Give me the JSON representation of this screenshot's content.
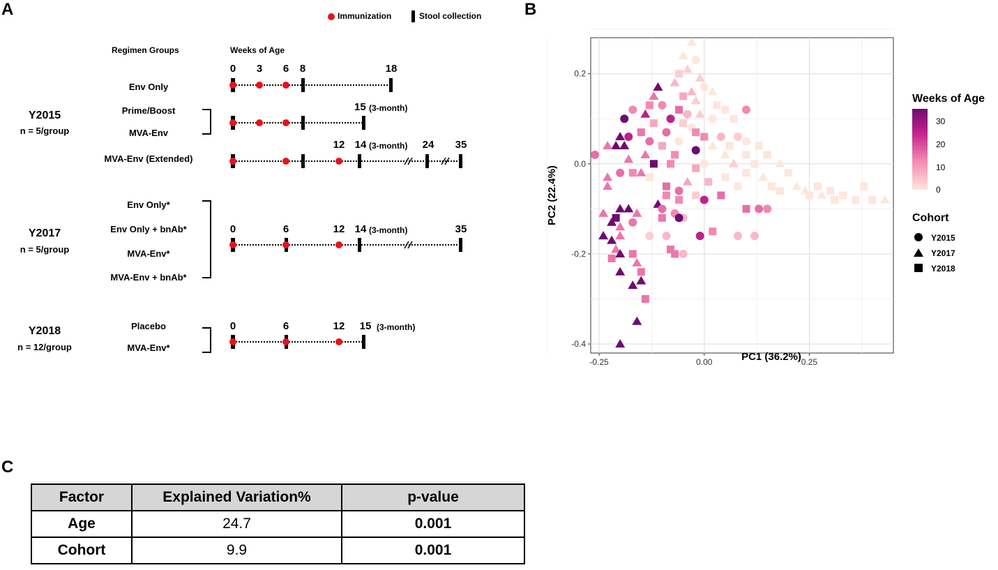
{
  "panel_a": {
    "letter": "A",
    "legend": {
      "immunization": "Immunization",
      "stool": "Stool collection"
    },
    "header_groups": "Regimen Groups",
    "header_weeks": "Weeks of Age",
    "cohorts": [
      {
        "name": "Y2015",
        "n": "n = 5/group"
      },
      {
        "name": "Y2017",
        "n": "n = 5/group"
      },
      {
        "name": "Y2018",
        "n": "n = 12/group"
      }
    ],
    "groups": {
      "env_only": "Env Only",
      "prime_boost": "Prime/Boost",
      "mva_env": "MVA-Env",
      "mva_env_ext": "MVA-Env (Extended)",
      "env_only_star": "Env Only*",
      "env_only_bnab": "Env Only + bnAb*",
      "mva_env_star": "MVA-Env*",
      "mva_env_bnab": "MVA-Env + bnAb*",
      "placebo": "Placebo",
      "mva_env_star2": "MVA-Env*"
    },
    "weeks": {
      "r1": [
        "0",
        "3",
        "6",
        "8",
        "18"
      ],
      "r2": [
        "15"
      ],
      "r3": [
        "12",
        "14",
        "24",
        "35"
      ],
      "r4": [
        "0",
        "6",
        "12",
        "14",
        "35"
      ],
      "r5": [
        "0",
        "6",
        "12",
        "15"
      ]
    },
    "three_month": "(3-month)"
  },
  "panel_b": {
    "letter": "B"
  },
  "panel_c": {
    "letter": "C",
    "headers": [
      "Factor",
      "Explained Variation%",
      "p-value"
    ],
    "rows": [
      {
        "factor": "Age",
        "variation": "24.7",
        "p": "0.001"
      },
      {
        "factor": "Cohort",
        "variation": "9.9",
        "p": "0.001"
      }
    ]
  },
  "chart_data": {
    "type": "scatter",
    "xlabel": "PC1 (36.2%)",
    "ylabel": "PC2 (22.4%)",
    "xlim": [
      -0.27,
      0.45
    ],
    "ylim": [
      -0.42,
      0.28
    ],
    "xticks": [
      -0.25,
      0.0,
      0.25
    ],
    "xtick_labels": [
      "-0.25",
      "0.00",
      "0.25"
    ],
    "yticks": [
      0.2,
      0.0,
      -0.2,
      -0.4
    ],
    "ytick_labels": [
      "0.2",
      "0.0",
      "-0.2",
      "-0.4"
    ],
    "color_legend": {
      "title": "Weeks of Age",
      "min": 0,
      "max": 35,
      "ticks": [
        "30",
        "20",
        "10",
        "0"
      ],
      "colors": [
        "#fde6dc",
        "#f48cb3",
        "#c2228c",
        "#6e0b73"
      ]
    },
    "shape_legend": {
      "title": "Cohort",
      "items": [
        "Y2015",
        "Y2017",
        "Y2018"
      ],
      "shapes": [
        "circle",
        "triangle",
        "square"
      ]
    },
    "points": [
      {
        "x": -0.03,
        "y": 0.27,
        "c": "Y2017",
        "w": 0
      },
      {
        "x": -0.05,
        "y": 0.24,
        "c": "Y2017",
        "w": 0
      },
      {
        "x": -0.02,
        "y": 0.23,
        "c": "Y2015",
        "w": 0
      },
      {
        "x": -0.04,
        "y": 0.21,
        "c": "Y2017",
        "w": 3
      },
      {
        "x": -0.06,
        "y": 0.2,
        "c": "Y2018",
        "w": 3
      },
      {
        "x": -0.01,
        "y": 0.19,
        "c": "Y2017",
        "w": 3
      },
      {
        "x": -0.07,
        "y": 0.18,
        "c": "Y2017",
        "w": 6
      },
      {
        "x": 0.0,
        "y": 0.17,
        "c": "Y2015",
        "w": 0
      },
      {
        "x": -0.03,
        "y": 0.16,
        "c": "Y2017",
        "w": 6
      },
      {
        "x": 0.02,
        "y": 0.16,
        "c": "Y2017",
        "w": 0
      },
      {
        "x": -0.05,
        "y": 0.15,
        "c": "Y2018",
        "w": 8
      },
      {
        "x": -0.02,
        "y": 0.14,
        "c": "Y2017",
        "w": 3
      },
      {
        "x": 0.03,
        "y": 0.13,
        "c": "Y2018",
        "w": 0
      },
      {
        "x": 0.05,
        "y": 0.12,
        "c": "Y2018",
        "w": 0
      },
      {
        "x": 0.1,
        "y": 0.12,
        "c": "Y2015",
        "w": 12
      },
      {
        "x": -0.06,
        "y": 0.12,
        "c": "Y2018",
        "w": 15
      },
      {
        "x": -0.04,
        "y": 0.11,
        "c": "Y2015",
        "w": 6
      },
      {
        "x": -0.01,
        "y": 0.11,
        "c": "Y2017",
        "w": 3
      },
      {
        "x": 0.02,
        "y": 0.1,
        "c": "Y2015",
        "w": 0
      },
      {
        "x": 0.07,
        "y": 0.1,
        "c": "Y2018",
        "w": 0
      },
      {
        "x": -0.11,
        "y": 0.17,
        "c": "Y2017",
        "w": 35
      },
      {
        "x": -0.12,
        "y": 0.15,
        "c": "Y2017",
        "w": 14
      },
      {
        "x": -0.1,
        "y": 0.13,
        "c": "Y2015",
        "w": 12
      },
      {
        "x": -0.13,
        "y": 0.13,
        "c": "Y2018",
        "w": 12
      },
      {
        "x": -0.17,
        "y": 0.12,
        "c": "Y2015",
        "w": 12
      },
      {
        "x": -0.14,
        "y": 0.11,
        "c": "Y2017",
        "w": 24
      },
      {
        "x": -0.19,
        "y": 0.1,
        "c": "Y2015",
        "w": 35
      },
      {
        "x": -0.08,
        "y": 0.1,
        "c": "Y2015",
        "w": 24
      },
      {
        "x": -0.12,
        "y": 0.09,
        "c": "Y2018",
        "w": 8
      },
      {
        "x": -0.05,
        "y": 0.09,
        "c": "Y2018",
        "w": 3
      },
      {
        "x": -0.03,
        "y": 0.08,
        "c": "Y2015",
        "w": 0
      },
      {
        "x": -0.09,
        "y": 0.07,
        "c": "Y2015",
        "w": 15
      },
      {
        "x": -0.02,
        "y": 0.07,
        "c": "Y2018",
        "w": 12
      },
      {
        "x": 0.0,
        "y": 0.06,
        "c": "Y2018",
        "w": 12
      },
      {
        "x": 0.04,
        "y": 0.06,
        "c": "Y2015",
        "w": 6
      },
      {
        "x": 0.08,
        "y": 0.06,
        "c": "Y2015",
        "w": 3
      },
      {
        "x": -0.15,
        "y": 0.07,
        "c": "Y2018",
        "w": 14
      },
      {
        "x": -0.18,
        "y": 0.06,
        "c": "Y2015",
        "w": 24
      },
      {
        "x": -0.2,
        "y": 0.06,
        "c": "Y2017",
        "w": 35
      },
      {
        "x": -0.21,
        "y": 0.04,
        "c": "Y2017",
        "w": 35
      },
      {
        "x": -0.19,
        "y": 0.04,
        "c": "Y2017",
        "w": 35
      },
      {
        "x": -0.13,
        "y": 0.05,
        "c": "Y2015",
        "w": 15
      },
      {
        "x": -0.06,
        "y": 0.05,
        "c": "Y2015",
        "w": 0
      },
      {
        "x": -0.1,
        "y": 0.04,
        "c": "Y2018",
        "w": 8
      },
      {
        "x": 0.02,
        "y": 0.04,
        "c": "Y2017",
        "w": 0
      },
      {
        "x": 0.06,
        "y": 0.04,
        "c": "Y2018",
        "w": 0
      },
      {
        "x": 0.1,
        "y": 0.05,
        "c": "Y2015",
        "w": 0
      },
      {
        "x": 0.13,
        "y": 0.04,
        "c": "Y2018",
        "w": 0
      },
      {
        "x": -0.23,
        "y": 0.04,
        "c": "Y2017",
        "w": 14
      },
      {
        "x": -0.02,
        "y": 0.03,
        "c": "Y2015",
        "w": 35
      },
      {
        "x": -0.07,
        "y": 0.02,
        "c": "Y2018",
        "w": 12
      },
      {
        "x": -0.14,
        "y": 0.02,
        "c": "Y2017",
        "w": 14
      },
      {
        "x": -0.26,
        "y": 0.02,
        "c": "Y2015",
        "w": 15
      },
      {
        "x": 0.05,
        "y": 0.02,
        "c": "Y2017",
        "w": 0
      },
      {
        "x": 0.1,
        "y": 0.02,
        "c": "Y2018",
        "w": 0
      },
      {
        "x": 0.15,
        "y": 0.02,
        "c": "Y2018",
        "w": 0
      },
      {
        "x": -0.18,
        "y": 0.01,
        "c": "Y2017",
        "w": 14
      },
      {
        "x": -0.12,
        "y": 0.0,
        "c": "Y2018",
        "w": 35
      },
      {
        "x": 0.0,
        "y": 0.0,
        "c": "Y2015",
        "w": 0
      },
      {
        "x": 0.07,
        "y": 0.0,
        "c": "Y2017",
        "w": 3
      },
      {
        "x": 0.12,
        "y": 0.0,
        "c": "Y2018",
        "w": 0
      },
      {
        "x": 0.18,
        "y": 0.0,
        "c": "Y2017",
        "w": 0
      },
      {
        "x": -0.08,
        "y": 0.0,
        "c": "Y2018",
        "w": 12
      },
      {
        "x": -0.02,
        "y": -0.01,
        "c": "Y2018",
        "w": 8
      },
      {
        "x": -0.17,
        "y": -0.02,
        "c": "Y2018",
        "w": 12
      },
      {
        "x": -0.2,
        "y": -0.02,
        "c": "Y2015",
        "w": 15
      },
      {
        "x": -0.15,
        "y": -0.02,
        "c": "Y2017",
        "w": 14
      },
      {
        "x": -0.13,
        "y": -0.03,
        "c": "Y2018",
        "w": 0
      },
      {
        "x": 0.05,
        "y": -0.03,
        "c": "Y2018",
        "w": 0
      },
      {
        "x": 0.1,
        "y": -0.02,
        "c": "Y2018",
        "w": 0
      },
      {
        "x": 0.14,
        "y": -0.03,
        "c": "Y2017",
        "w": 0
      },
      {
        "x": 0.2,
        "y": -0.02,
        "c": "Y2018",
        "w": 0
      },
      {
        "x": -0.23,
        "y": -0.03,
        "c": "Y2017",
        "w": 14
      },
      {
        "x": -0.04,
        "y": -0.04,
        "c": "Y2017",
        "w": 8
      },
      {
        "x": 0.01,
        "y": -0.04,
        "c": "Y2018",
        "w": 6
      },
      {
        "x": 0.08,
        "y": -0.05,
        "c": "Y2018",
        "w": 0
      },
      {
        "x": 0.16,
        "y": -0.05,
        "c": "Y2018",
        "w": 0
      },
      {
        "x": 0.22,
        "y": -0.05,
        "c": "Y2017",
        "w": 0
      },
      {
        "x": -0.09,
        "y": -0.05,
        "c": "Y2018",
        "w": 15
      },
      {
        "x": -0.23,
        "y": -0.05,
        "c": "Y2017",
        "w": 14
      },
      {
        "x": -0.06,
        "y": -0.06,
        "c": "Y2015",
        "w": 15
      },
      {
        "x": 0.18,
        "y": -0.06,
        "c": "Y2018",
        "w": 0
      },
      {
        "x": 0.24,
        "y": -0.06,
        "c": "Y2017",
        "w": 0
      },
      {
        "x": 0.27,
        "y": -0.05,
        "c": "Y2018",
        "w": 0
      },
      {
        "x": -0.09,
        "y": -0.07,
        "c": "Y2018",
        "w": 12
      },
      {
        "x": -0.02,
        "y": -0.07,
        "c": "Y2018",
        "w": 3
      },
      {
        "x": 0.04,
        "y": -0.07,
        "c": "Y2018",
        "w": 15
      },
      {
        "x": 0.25,
        "y": -0.07,
        "c": "Y2018",
        "w": 0
      },
      {
        "x": 0.3,
        "y": -0.06,
        "c": "Y2018",
        "w": 0
      },
      {
        "x": 0.33,
        "y": -0.07,
        "c": "Y2018",
        "w": 0
      },
      {
        "x": -0.06,
        "y": -0.08,
        "c": "Y2018",
        "w": 12
      },
      {
        "x": 0.0,
        "y": -0.08,
        "c": "Y2015",
        "w": 24
      },
      {
        "x": 0.31,
        "y": -0.08,
        "c": "Y2018",
        "w": 0
      },
      {
        "x": 0.36,
        "y": -0.08,
        "c": "Y2018",
        "w": 0
      },
      {
        "x": 0.4,
        "y": -0.08,
        "c": "Y2018",
        "w": 0
      },
      {
        "x": 0.43,
        "y": -0.08,
        "c": "Y2017",
        "w": 0
      },
      {
        "x": 0.38,
        "y": -0.05,
        "c": "Y2018",
        "w": 0
      },
      {
        "x": 0.28,
        "y": -0.07,
        "c": "Y2017",
        "w": 0
      },
      {
        "x": -0.2,
        "y": -0.1,
        "c": "Y2017",
        "w": 35
      },
      {
        "x": -0.18,
        "y": -0.1,
        "c": "Y2017",
        "w": 35
      },
      {
        "x": -0.21,
        "y": -0.12,
        "c": "Y2018",
        "w": 35
      },
      {
        "x": -0.11,
        "y": -0.09,
        "c": "Y2017",
        "w": 35
      },
      {
        "x": -0.1,
        "y": -0.1,
        "c": "Y2015",
        "w": 15
      },
      {
        "x": -0.07,
        "y": -0.11,
        "c": "Y2015",
        "w": 12
      },
      {
        "x": -0.05,
        "y": -0.12,
        "c": "Y2015",
        "w": 6
      },
      {
        "x": -0.06,
        "y": -0.12,
        "c": "Y2015",
        "w": 35
      },
      {
        "x": -0.1,
        "y": -0.12,
        "c": "Y2018",
        "w": 14
      },
      {
        "x": 0.1,
        "y": -0.1,
        "c": "Y2018",
        "w": 15
      },
      {
        "x": 0.13,
        "y": -0.1,
        "c": "Y2015",
        "w": 15
      },
      {
        "x": 0.15,
        "y": -0.1,
        "c": "Y2015",
        "w": 12
      },
      {
        "x": -0.16,
        "y": -0.11,
        "c": "Y2017",
        "w": 14
      },
      {
        "x": -0.24,
        "y": -0.11,
        "c": "Y2017",
        "w": 14
      },
      {
        "x": -0.22,
        "y": -0.13,
        "c": "Y2017",
        "w": 35
      },
      {
        "x": -0.2,
        "y": -0.14,
        "c": "Y2017",
        "w": 14
      },
      {
        "x": -0.17,
        "y": -0.13,
        "c": "Y2015",
        "w": 14
      },
      {
        "x": 0.02,
        "y": -0.15,
        "c": "Y2018",
        "w": 12
      },
      {
        "x": -0.01,
        "y": -0.16,
        "c": "Y2015",
        "w": 24
      },
      {
        "x": -0.13,
        "y": -0.16,
        "c": "Y2015",
        "w": 3
      },
      {
        "x": -0.09,
        "y": -0.16,
        "c": "Y2015",
        "w": 6
      },
      {
        "x": 0.08,
        "y": -0.16,
        "c": "Y2015",
        "w": 6
      },
      {
        "x": 0.12,
        "y": -0.16,
        "c": "Y2015",
        "w": 6
      },
      {
        "x": -0.24,
        "y": -0.16,
        "c": "Y2017",
        "w": 35
      },
      {
        "x": -0.22,
        "y": -0.17,
        "c": "Y2017",
        "w": 35
      },
      {
        "x": -0.2,
        "y": -0.16,
        "c": "Y2017",
        "w": 14
      },
      {
        "x": -0.21,
        "y": -0.19,
        "c": "Y2017",
        "w": 14
      },
      {
        "x": -0.22,
        "y": -0.21,
        "c": "Y2018",
        "w": 14
      },
      {
        "x": -0.2,
        "y": -0.2,
        "c": "Y2017",
        "w": 35
      },
      {
        "x": -0.17,
        "y": -0.2,
        "c": "Y2018",
        "w": 14
      },
      {
        "x": -0.08,
        "y": -0.19,
        "c": "Y2018",
        "w": 14
      },
      {
        "x": -0.07,
        "y": -0.2,
        "c": "Y2018",
        "w": 14
      },
      {
        "x": -0.05,
        "y": -0.2,
        "c": "Y2015",
        "w": 6
      },
      {
        "x": -0.16,
        "y": -0.22,
        "c": "Y2017",
        "w": 14
      },
      {
        "x": -0.2,
        "y": -0.24,
        "c": "Y2017",
        "w": 35
      },
      {
        "x": -0.15,
        "y": -0.24,
        "c": "Y2018",
        "w": 14
      },
      {
        "x": -0.17,
        "y": -0.27,
        "c": "Y2017",
        "w": 35
      },
      {
        "x": -0.15,
        "y": -0.26,
        "c": "Y2017",
        "w": 35
      },
      {
        "x": -0.14,
        "y": -0.3,
        "c": "Y2018",
        "w": 14
      },
      {
        "x": -0.16,
        "y": -0.35,
        "c": "Y2017",
        "w": 35
      },
      {
        "x": -0.2,
        "y": -0.4,
        "c": "Y2017",
        "w": 35
      }
    ]
  }
}
